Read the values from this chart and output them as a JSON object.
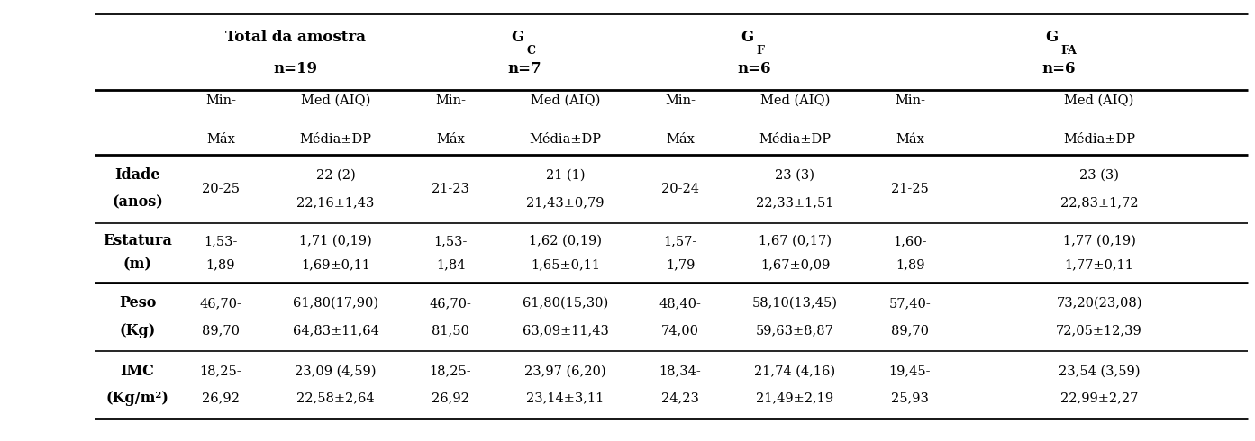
{
  "groups": [
    {
      "name": "Total da amostra",
      "subscript": "",
      "n": "n=19"
    },
    {
      "name": "G",
      "subscript": "C",
      "n": "n=7"
    },
    {
      "name": "G",
      "subscript": "F",
      "n": "n=6"
    },
    {
      "name": "G",
      "subscript": "FA",
      "n": "n=6"
    }
  ],
  "row_labels": [
    [
      "Idade",
      "(anos)"
    ],
    [
      "Estatura",
      "(m)"
    ],
    [
      "Peso",
      "(Kg)"
    ],
    [
      "IMC",
      "(Kg/m²)"
    ]
  ],
  "rows": [
    [
      "20-25",
      "22 (2)\n22,16±1,43",
      "21-23",
      "21 (1)\n21,43±0,79",
      "20-24",
      "23 (3)\n22,33±1,51",
      "21-25",
      "23 (3)\n22,83±1,72"
    ],
    [
      "1,53-\n1,89",
      "1,71 (0,19)\n1,69±0,11",
      "1,53-\n1,84",
      "1,62 (0,19)\n1,65±0,11",
      "1,57-\n1,79",
      "1,67 (0,17)\n1,67±0,09",
      "1,60-\n1,89",
      "1,77 (0,19)\n1,77±0,11"
    ],
    [
      "46,70-\n89,70",
      "61,80(17,90)\n64,83±11,64",
      "46,70-\n81,50",
      "61,80(15,30)\n63,09±11,43",
      "48,40-\n74,00",
      "58,10(13,45)\n59,63±8,87",
      "57,40-\n89,70",
      "73,20(23,08)\n72,05±12,39"
    ],
    [
      "18,25-\n26,92",
      "23,09 (4,59)\n22,58±2,64",
      "18,25-\n26,92",
      "23,97 (6,20)\n23,14±3,11",
      "18,34-\n24,23",
      "21,74 (4,16)\n21,49±2,19",
      "19,45-\n25,93",
      "23,54 (3,59)\n22,99±2,27"
    ]
  ],
  "bg_color": "#ffffff",
  "text_color": "#000000",
  "line_color": "#000000",
  "font_size": 10.5,
  "header_font_size": 12,
  "label_font_size": 11.5
}
